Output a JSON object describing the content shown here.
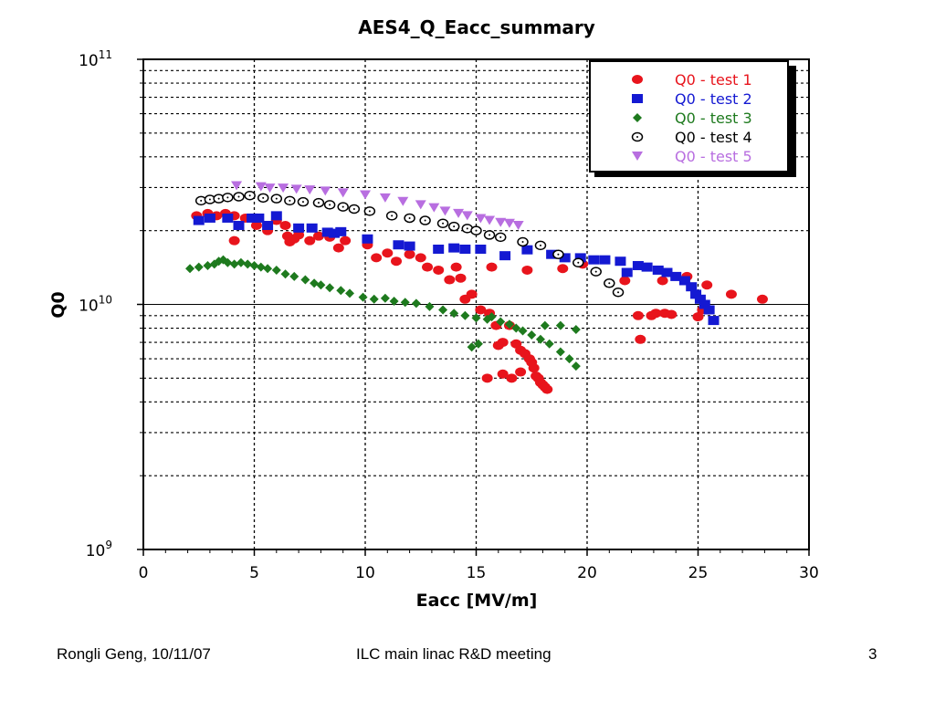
{
  "footer": {
    "author_date": "Rongli Geng, 10/11/07",
    "meeting": "ILC main linac R&D meeting",
    "page": "3"
  },
  "chart_data": {
    "type": "scatter",
    "title": "AES4_Q_Eacc_summary",
    "xlabel": "Eacc [MV/m]",
    "ylabel": "Q0",
    "xlim": [
      0,
      30
    ],
    "ylim": [
      1000000000.0,
      100000000000.0
    ],
    "yscale": "log",
    "grid": true,
    "legend_position": "top-right",
    "x_ticks": [
      "0",
      "5",
      "10",
      "15",
      "20",
      "25",
      "30"
    ],
    "y_ticks": [
      {
        "base": "10",
        "exp": "9"
      },
      {
        "base": "10",
        "exp": "10"
      },
      {
        "base": "10",
        "exp": "11"
      }
    ],
    "series": [
      {
        "name": "Q0 - test 1",
        "marker": "circle",
        "color": "#e8141c",
        "points": [
          [
            2.4,
            23000000000.0
          ],
          [
            2.9,
            23500000000.0
          ],
          [
            3.3,
            23000000000.0
          ],
          [
            3.7,
            23500000000.0
          ],
          [
            4.1,
            23000000000.0
          ],
          [
            4.1,
            18200000000.0
          ],
          [
            4.6,
            22500000000.0
          ],
          [
            5.1,
            21000000000.0
          ],
          [
            5.6,
            20000000000.0
          ],
          [
            6.0,
            22000000000.0
          ],
          [
            6.4,
            21000000000.0
          ],
          [
            6.5,
            19000000000.0
          ],
          [
            6.6,
            18000000000.0
          ],
          [
            6.8,
            18500000000.0
          ],
          [
            7.0,
            19200000000.0
          ],
          [
            7.5,
            18200000000.0
          ],
          [
            7.9,
            19000000000.0
          ],
          [
            8.4,
            18800000000.0
          ],
          [
            8.8,
            17000000000.0
          ],
          [
            9.1,
            18200000000.0
          ],
          [
            10.1,
            17500000000.0
          ],
          [
            10.5,
            15500000000.0
          ],
          [
            11.0,
            16200000000.0
          ],
          [
            11.4,
            15000000000.0
          ],
          [
            12.0,
            16000000000.0
          ],
          [
            12.5,
            15500000000.0
          ],
          [
            12.8,
            14200000000.0
          ],
          [
            13.3,
            13800000000.0
          ],
          [
            13.8,
            12600000000.0
          ],
          [
            14.1,
            14200000000.0
          ],
          [
            14.3,
            12800000000.0
          ],
          [
            14.5,
            10500000000.0
          ],
          [
            14.8,
            11000000000.0
          ],
          [
            15.2,
            9500000000.0
          ],
          [
            15.6,
            9200000000.0
          ],
          [
            15.7,
            14200000000.0
          ],
          [
            15.9,
            8200000000.0
          ],
          [
            16.2,
            7000000000.0
          ],
          [
            16.5,
            8200000000.0
          ],
          [
            16.8,
            6900000000.0
          ],
          [
            17.0,
            6500000000.0
          ],
          [
            17.2,
            6300000000.0
          ],
          [
            17.4,
            6000000000.0
          ],
          [
            17.5,
            5800000000.0
          ],
          [
            17.6,
            5500000000.0
          ],
          [
            17.7,
            5100000000.0
          ],
          [
            17.8,
            5000000000.0
          ],
          [
            17.9,
            4800000000.0
          ],
          [
            18.0,
            4700000000.0
          ],
          [
            18.1,
            4600000000.0
          ],
          [
            18.2,
            4500000000.0
          ],
          [
            17.0,
            5300000000.0
          ],
          [
            16.6,
            5000000000.0
          ],
          [
            16.2,
            5200000000.0
          ],
          [
            15.5,
            5000000000.0
          ],
          [
            16.0,
            6800000000.0
          ],
          [
            17.3,
            13800000000.0
          ],
          [
            18.9,
            14000000000.0
          ],
          [
            19.8,
            14600000000.0
          ],
          [
            21.7,
            12500000000.0
          ],
          [
            22.3,
            9000000000.0
          ],
          [
            22.4,
            7200000000.0
          ],
          [
            22.9,
            9000000000.0
          ],
          [
            23.1,
            9200000000.0
          ],
          [
            23.5,
            9200000000.0
          ],
          [
            23.8,
            9100000000.0
          ],
          [
            23.4,
            12500000000.0
          ],
          [
            24.5,
            13000000000.0
          ],
          [
            25.0,
            8900000000.0
          ],
          [
            25.2,
            9500000000.0
          ],
          [
            25.4,
            12000000000.0
          ],
          [
            26.5,
            11000000000.0
          ],
          [
            27.9,
            10500000000.0
          ]
        ]
      },
      {
        "name": "Q0 - test 2",
        "marker": "square",
        "color": "#1419d2",
        "points": [
          [
            2.5,
            22000000000.0
          ],
          [
            3.0,
            22500000000.0
          ],
          [
            3.8,
            22500000000.0
          ],
          [
            4.3,
            21000000000.0
          ],
          [
            4.9,
            22500000000.0
          ],
          [
            5.2,
            22500000000.0
          ],
          [
            5.6,
            21000000000.0
          ],
          [
            6.0,
            23000000000.0
          ],
          [
            7.0,
            20500000000.0
          ],
          [
            7.6,
            20500000000.0
          ],
          [
            8.3,
            19700000000.0
          ],
          [
            8.6,
            19500000000.0
          ],
          [
            8.9,
            19800000000.0
          ],
          [
            10.1,
            18500000000.0
          ],
          [
            11.5,
            17500000000.0
          ],
          [
            12.0,
            17300000000.0
          ],
          [
            13.3,
            16800000000.0
          ],
          [
            14.0,
            17000000000.0
          ],
          [
            14.5,
            16800000000.0
          ],
          [
            15.2,
            16800000000.0
          ],
          [
            16.3,
            15800000000.0
          ],
          [
            17.3,
            16700000000.0
          ],
          [
            18.4,
            16000000000.0
          ],
          [
            19.0,
            15500000000.0
          ],
          [
            19.7,
            15500000000.0
          ],
          [
            20.3,
            15200000000.0
          ],
          [
            20.8,
            15200000000.0
          ],
          [
            21.5,
            15000000000.0
          ],
          [
            21.8,
            13500000000.0
          ],
          [
            22.3,
            14400000000.0
          ],
          [
            22.7,
            14200000000.0
          ],
          [
            23.2,
            13800000000.0
          ],
          [
            23.6,
            13500000000.0
          ],
          [
            24.0,
            13000000000.0
          ],
          [
            24.4,
            12500000000.0
          ],
          [
            24.7,
            11800000000.0
          ],
          [
            24.9,
            11000000000.0
          ],
          [
            25.1,
            10500000000.0
          ],
          [
            25.3,
            10000000000.0
          ],
          [
            25.5,
            9500000000.0
          ],
          [
            25.7,
            8600000000.0
          ]
        ]
      },
      {
        "name": "Q0 - test 3",
        "marker": "diamond",
        "color": "#1e7a1e",
        "points": [
          [
            2.1,
            14000000000.0
          ],
          [
            2.5,
            14200000000.0
          ],
          [
            2.9,
            14400000000.0
          ],
          [
            3.2,
            14600000000.0
          ],
          [
            3.4,
            15000000000.0
          ],
          [
            3.6,
            15200000000.0
          ],
          [
            3.8,
            14800000000.0
          ],
          [
            4.1,
            14600000000.0
          ],
          [
            4.4,
            14800000000.0
          ],
          [
            4.7,
            14600000000.0
          ],
          [
            5.0,
            14400000000.0
          ],
          [
            5.3,
            14200000000.0
          ],
          [
            5.6,
            14000000000.0
          ],
          [
            6.0,
            13800000000.0
          ],
          [
            6.4,
            13300000000.0
          ],
          [
            6.8,
            13000000000.0
          ],
          [
            7.3,
            12600000000.0
          ],
          [
            7.7,
            12200000000.0
          ],
          [
            8.0,
            12000000000.0
          ],
          [
            8.4,
            11700000000.0
          ],
          [
            8.9,
            11400000000.0
          ],
          [
            9.3,
            11100000000.0
          ],
          [
            9.9,
            10700000000.0
          ],
          [
            10.4,
            10500000000.0
          ],
          [
            10.9,
            10600000000.0
          ],
          [
            11.3,
            10300000000.0
          ],
          [
            11.8,
            10200000000.0
          ],
          [
            12.3,
            10100000000.0
          ],
          [
            12.9,
            9800000000.0
          ],
          [
            13.5,
            9500000000.0
          ],
          [
            14.0,
            9200000000.0
          ],
          [
            14.5,
            9000000000.0
          ],
          [
            15.0,
            8800000000.0
          ],
          [
            15.5,
            8700000000.0
          ],
          [
            15.7,
            8900000000.0
          ],
          [
            16.1,
            8500000000.0
          ],
          [
            16.5,
            8300000000.0
          ],
          [
            16.8,
            8000000000.0
          ],
          [
            17.1,
            7800000000.0
          ],
          [
            17.5,
            7500000000.0
          ],
          [
            17.9,
            7200000000.0
          ],
          [
            18.3,
            6900000000.0
          ],
          [
            18.8,
            6400000000.0
          ],
          [
            19.2,
            6000000000.0
          ],
          [
            19.5,
            5600000000.0
          ],
          [
            14.8,
            6700000000.0
          ],
          [
            15.1,
            6900000000.0
          ],
          [
            18.1,
            8200000000.0
          ],
          [
            18.8,
            8200000000.0
          ],
          [
            19.5,
            7900000000.0
          ]
        ]
      },
      {
        "name": "Q0 - test 4",
        "marker": "open-circle",
        "color": "#000000",
        "points": [
          [
            2.6,
            26500000000.0
          ],
          [
            3.0,
            26800000000.0
          ],
          [
            3.4,
            27000000000.0
          ],
          [
            3.8,
            27300000000.0
          ],
          [
            4.3,
            27500000000.0
          ],
          [
            4.8,
            27800000000.0
          ],
          [
            5.4,
            27200000000.0
          ],
          [
            6.0,
            27000000000.0
          ],
          [
            6.6,
            26500000000.0
          ],
          [
            7.2,
            26200000000.0
          ],
          [
            7.9,
            26000000000.0
          ],
          [
            8.4,
            25500000000.0
          ],
          [
            9.0,
            25000000000.0
          ],
          [
            9.5,
            24500000000.0
          ],
          [
            10.2,
            24000000000.0
          ],
          [
            11.2,
            23000000000.0
          ],
          [
            12.0,
            22500000000.0
          ],
          [
            12.7,
            22000000000.0
          ],
          [
            13.5,
            21400000000.0
          ],
          [
            14.0,
            20800000000.0
          ],
          [
            14.6,
            20400000000.0
          ],
          [
            15.0,
            20000000000.0
          ],
          [
            15.6,
            19200000000.0
          ],
          [
            16.1,
            18800000000.0
          ],
          [
            17.1,
            18000000000.0
          ],
          [
            17.9,
            17400000000.0
          ],
          [
            18.7,
            16000000000.0
          ],
          [
            19.6,
            14800000000.0
          ],
          [
            20.4,
            13600000000.0
          ],
          [
            21.0,
            12200000000.0
          ],
          [
            21.4,
            11200000000.0
          ]
        ]
      },
      {
        "name": "Q0 - test 5",
        "marker": "triangle-down",
        "color": "#b86ee0",
        "points": [
          [
            4.2,
            30500000000.0
          ],
          [
            5.3,
            30200000000.0
          ],
          [
            5.7,
            29800000000.0
          ],
          [
            6.3,
            29800000000.0
          ],
          [
            6.9,
            29500000000.0
          ],
          [
            7.5,
            29300000000.0
          ],
          [
            8.2,
            29000000000.0
          ],
          [
            9.0,
            28500000000.0
          ],
          [
            10.0,
            28000000000.0
          ],
          [
            10.9,
            27200000000.0
          ],
          [
            11.7,
            26300000000.0
          ],
          [
            12.5,
            25500000000.0
          ],
          [
            13.1,
            24800000000.0
          ],
          [
            13.6,
            24000000000.0
          ],
          [
            14.2,
            23500000000.0
          ],
          [
            14.6,
            23000000000.0
          ],
          [
            15.2,
            22400000000.0
          ],
          [
            15.6,
            22000000000.0
          ],
          [
            16.1,
            21600000000.0
          ],
          [
            16.5,
            21400000000.0
          ],
          [
            16.9,
            21000000000.0
          ]
        ]
      }
    ]
  }
}
